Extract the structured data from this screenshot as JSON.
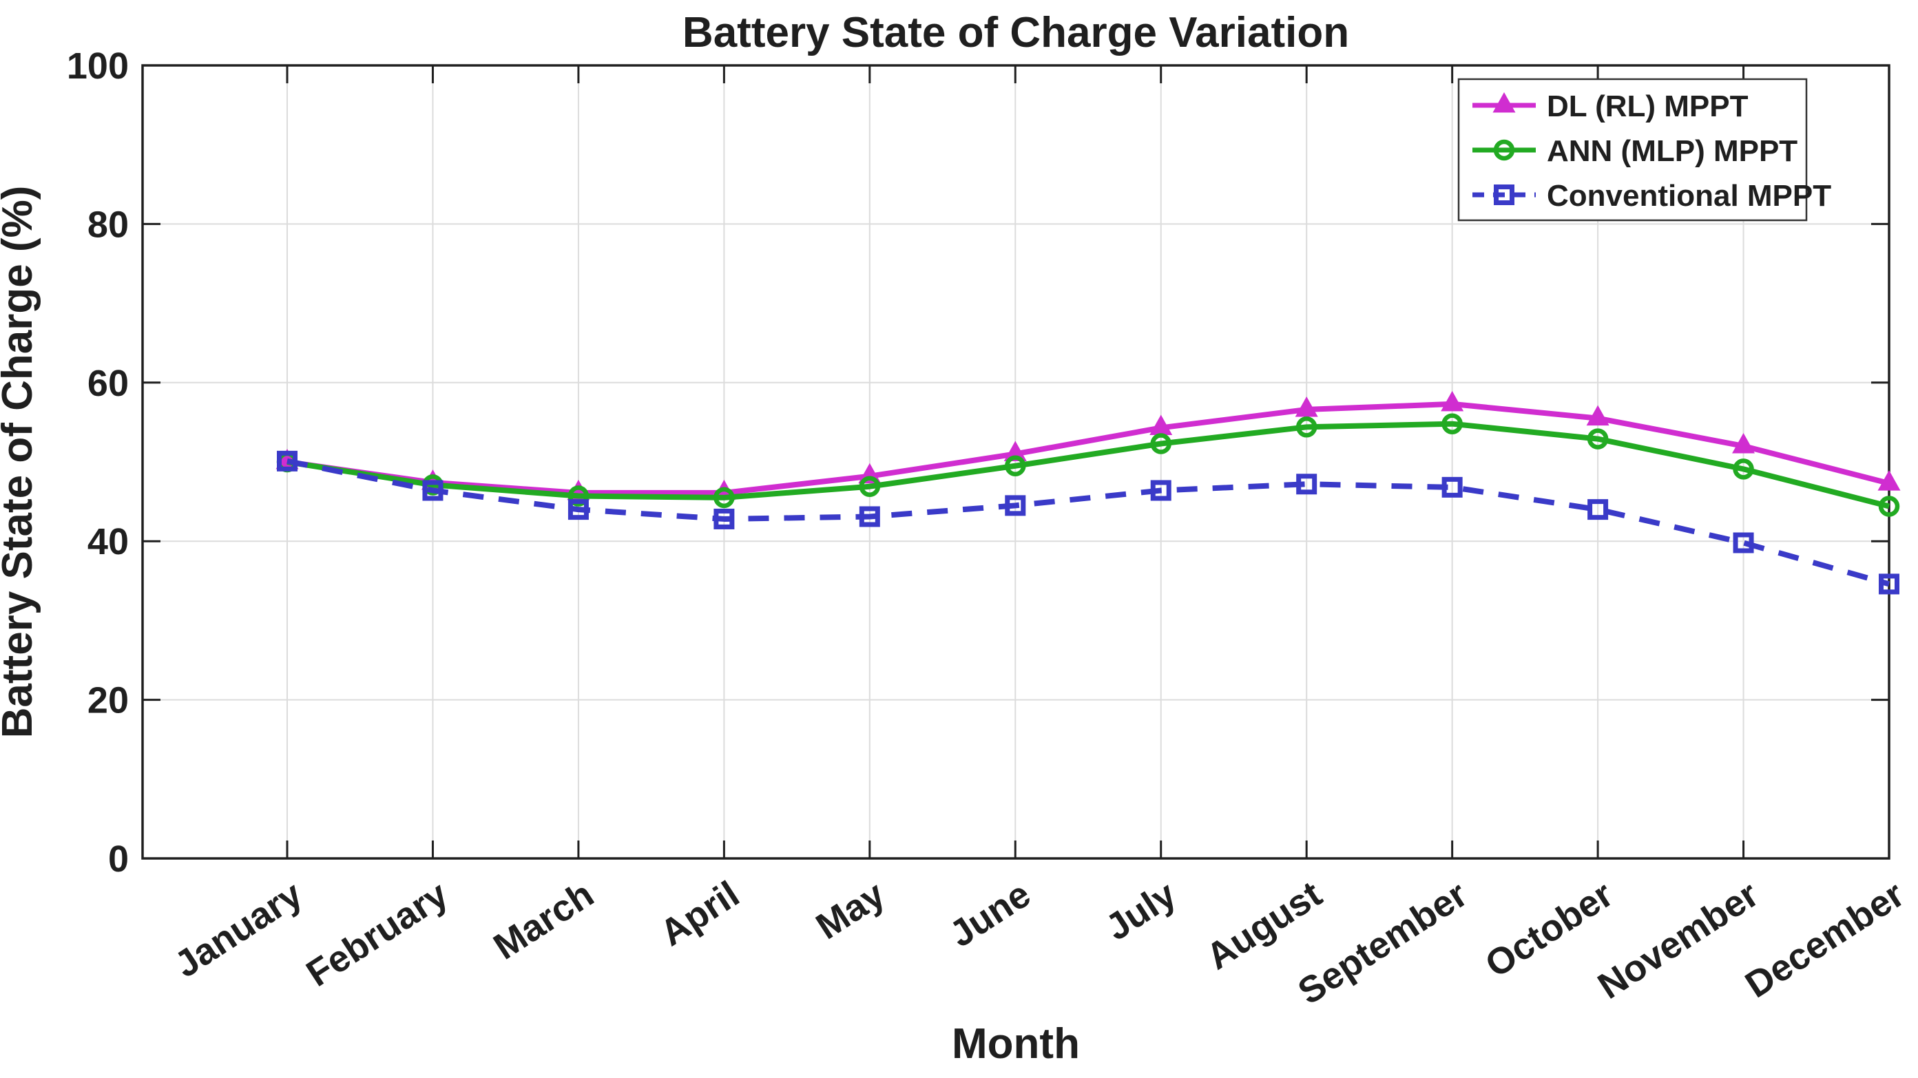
{
  "figure": {
    "title": "Battery State of Charge Variation"
  },
  "chart_data": {
    "type": "line",
    "title": "Battery State of Charge Variation",
    "xlabel": "Month",
    "ylabel": "Battery State of Charge (%)",
    "categories": [
      "January",
      "February",
      "March",
      "April",
      "May",
      "June",
      "July",
      "August",
      "September",
      "October",
      "November",
      "December"
    ],
    "yticks": [
      0,
      20,
      40,
      60,
      80,
      100
    ],
    "ylim": [
      0,
      100
    ],
    "grid": true,
    "legend_position": "top-right",
    "series": [
      {
        "name": "DL (RL) MPPT",
        "color": "#d02dd0",
        "marker": "triangle",
        "line_style": "solid",
        "values": [
          50.0,
          47.4,
          46.1,
          46.1,
          48.2,
          51.0,
          54.3,
          56.6,
          57.3,
          55.5,
          52.0,
          47.3
        ]
      },
      {
        "name": "ANN (MLP) MPPT",
        "color": "#22aa22",
        "marker": "circle",
        "line_style": "solid",
        "values": [
          50.0,
          47.1,
          45.7,
          45.5,
          46.9,
          49.5,
          52.3,
          54.4,
          54.8,
          52.9,
          49.1,
          44.4
        ]
      },
      {
        "name": "Conventional MPPT",
        "color": "#3a3ac8",
        "marker": "square",
        "line_style": "dashed",
        "values": [
          50.1,
          46.4,
          44.0,
          42.8,
          43.1,
          44.5,
          46.4,
          47.2,
          46.8,
          44.0,
          39.8,
          34.6
        ]
      }
    ]
  }
}
